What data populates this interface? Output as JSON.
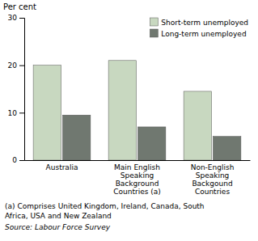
{
  "chart_data": {
    "type": "bar",
    "categories": [
      "Australia",
      "Main English\nSpeaking\nBackground\nCountries (a)",
      "Non-English\nSpeaking\nBackgound\nCountries"
    ],
    "series": [
      {
        "name": "Short-term unemployed",
        "color": "#c8d8c0",
        "values": [
          20,
          21,
          14.5
        ]
      },
      {
        "name": "Long-term unemployed",
        "color": "#707870",
        "values": [
          9.5,
          7.0,
          5.0
        ]
      }
    ],
    "ylabel": "Per cent",
    "ylim": [
      0,
      30
    ],
    "yticks": [
      0,
      10,
      20,
      30
    ],
    "grid": false,
    "legend": "upper right",
    "footnotes": [
      "(a) Comprises United Kingdom, Ireland, Canada, South",
      "Africa, USA and New Zealand"
    ],
    "source": "Source: Labour Force Survey"
  }
}
